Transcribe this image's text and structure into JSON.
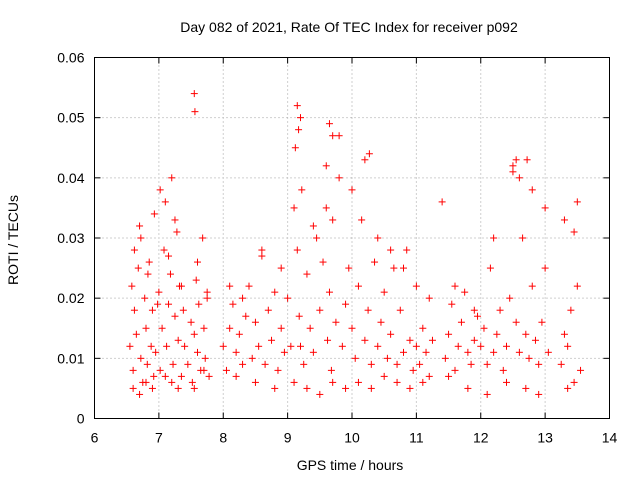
{
  "chart_data": {
    "type": "scatter",
    "title": "Day 082 of 2021, Rate Of TEC Index for receiver p092",
    "xlabel": "GPS time / hours",
    "ylabel": "ROTI / TECUs",
    "xlim": [
      6,
      14
    ],
    "ylim": [
      0,
      0.06
    ],
    "xticks": [
      6,
      7,
      8,
      9,
      10,
      11,
      12,
      13,
      14
    ],
    "yticks": [
      0,
      0.01,
      0.02,
      0.03,
      0.04,
      0.05,
      0.06
    ],
    "xtick_labels": [
      "6",
      "7",
      "8",
      "9",
      "10",
      "11",
      "12",
      "13",
      "14"
    ],
    "ytick_labels": [
      "0",
      "0.01",
      "0.02",
      "0.03",
      "0.04",
      "0.05",
      "0.06"
    ],
    "grid": true,
    "marker": "+",
    "color": "#ff0000",
    "series": [
      {
        "name": "ROTI",
        "x": [
          6.55,
          6.58,
          6.6,
          6.62,
          6.65,
          6.68,
          6.7,
          6.72,
          6.75,
          6.78,
          6.8,
          6.82,
          6.85,
          6.88,
          6.9,
          6.92,
          6.95,
          6.98,
          7.0,
          7.02,
          7.05,
          7.08,
          7.1,
          7.12,
          7.15,
          7.18,
          7.2,
          7.22,
          7.25,
          7.28,
          7.3,
          7.32,
          7.35,
          7.38,
          7.4,
          7.45,
          7.5,
          7.52,
          7.55,
          7.58,
          7.6,
          7.62,
          7.65,
          7.68,
          7.7,
          7.72,
          7.75,
          7.78,
          8.0,
          8.05,
          8.1,
          8.15,
          8.2,
          8.25,
          8.3,
          8.35,
          8.4,
          8.45,
          8.5,
          8.55,
          8.6,
          8.65,
          8.7,
          8.75,
          8.8,
          8.85,
          8.9,
          8.95,
          9.0,
          9.05,
          9.1,
          9.12,
          9.15,
          9.18,
          9.2,
          9.22,
          9.25,
          9.3,
          9.35,
          9.4,
          9.45,
          9.5,
          9.55,
          9.6,
          9.62,
          9.65,
          9.68,
          9.7,
          9.75,
          9.8,
          9.85,
          9.9,
          9.95,
          10.0,
          10.05,
          10.1,
          10.15,
          10.2,
          10.25,
          10.3,
          10.35,
          10.4,
          10.45,
          10.5,
          10.55,
          10.6,
          10.65,
          10.7,
          10.75,
          10.8,
          10.85,
          10.9,
          10.95,
          11.0,
          11.05,
          11.1,
          11.15,
          11.2,
          11.25,
          11.4,
          11.45,
          11.5,
          11.55,
          11.6,
          11.65,
          11.7,
          11.75,
          11.8,
          11.85,
          11.9,
          11.95,
          12.0,
          12.05,
          12.1,
          12.15,
          12.2,
          12.25,
          12.3,
          12.35,
          12.4,
          12.45,
          12.5,
          12.55,
          12.6,
          12.65,
          12.7,
          12.75,
          12.8,
          12.85,
          12.9,
          12.95,
          13.0,
          13.05,
          13.25,
          13.3,
          13.35,
          13.4,
          13.45,
          13.5,
          13.55,
          6.6,
          6.7,
          6.8,
          6.9,
          7.1,
          7.2,
          7.3,
          7.55,
          7.7,
          8.2,
          8.5,
          8.8,
          9.1,
          9.3,
          9.5,
          9.7,
          9.9,
          10.1,
          10.3,
          10.5,
          10.7,
          10.9,
          11.1,
          11.5,
          11.8,
          12.1,
          12.4,
          12.7,
          12.9,
          13.35,
          13.45,
          6.62,
          6.72,
          6.83,
          6.93,
          7.02,
          7.15,
          7.25,
          7.35,
          7.6,
          7.75,
          8.1,
          8.3,
          8.6,
          8.9,
          9.2,
          9.4,
          9.6,
          9.8,
          10.0,
          10.2,
          10.4,
          10.6,
          10.8,
          11.0,
          11.2,
          11.6,
          11.9,
          12.2,
          12.5,
          12.8,
          13.0,
          13.3,
          13.5,
          7.55,
          7.56,
          9.15,
          9.17,
          9.65,
          9.7,
          10.27,
          12.55,
          12.6,
          12.72
        ],
        "y": [
          0.012,
          0.022,
          0.008,
          0.018,
          0.014,
          0.025,
          0.032,
          0.01,
          0.006,
          0.02,
          0.015,
          0.009,
          0.026,
          0.012,
          0.018,
          0.007,
          0.011,
          0.019,
          0.021,
          0.008,
          0.015,
          0.028,
          0.036,
          0.012,
          0.019,
          0.024,
          0.04,
          0.009,
          0.017,
          0.031,
          0.013,
          0.022,
          0.007,
          0.018,
          0.012,
          0.009,
          0.016,
          0.006,
          0.014,
          0.023,
          0.011,
          0.019,
          0.008,
          0.03,
          0.015,
          0.01,
          0.021,
          0.007,
          0.012,
          0.008,
          0.015,
          0.019,
          0.011,
          0.014,
          0.009,
          0.017,
          0.022,
          0.01,
          0.016,
          0.012,
          0.027,
          0.009,
          0.018,
          0.013,
          0.021,
          0.008,
          0.015,
          0.011,
          0.02,
          0.012,
          0.035,
          0.045,
          0.028,
          0.017,
          0.012,
          0.038,
          0.009,
          0.024,
          0.015,
          0.011,
          0.03,
          0.018,
          0.026,
          0.042,
          0.013,
          0.021,
          0.008,
          0.033,
          0.016,
          0.04,
          0.012,
          0.019,
          0.025,
          0.015,
          0.01,
          0.022,
          0.033,
          0.013,
          0.018,
          0.009,
          0.026,
          0.012,
          0.016,
          0.021,
          0.01,
          0.014,
          0.025,
          0.009,
          0.018,
          0.011,
          0.028,
          0.013,
          0.008,
          0.012,
          0.009,
          0.015,
          0.011,
          0.007,
          0.013,
          0.036,
          0.01,
          0.014,
          0.019,
          0.008,
          0.012,
          0.016,
          0.021,
          0.011,
          0.009,
          0.013,
          0.017,
          0.012,
          0.015,
          0.009,
          0.025,
          0.011,
          0.014,
          0.018,
          0.008,
          0.012,
          0.02,
          0.042,
          0.016,
          0.011,
          0.03,
          0.014,
          0.01,
          0.022,
          0.013,
          0.009,
          0.016,
          0.025,
          0.011,
          0.009,
          0.014,
          0.012,
          0.018,
          0.031,
          0.022,
          0.008,
          0.005,
          0.004,
          0.006,
          0.005,
          0.007,
          0.006,
          0.005,
          0.005,
          0.008,
          0.007,
          0.006,
          0.005,
          0.006,
          0.005,
          0.004,
          0.006,
          0.005,
          0.006,
          0.005,
          0.007,
          0.006,
          0.005,
          0.006,
          0.007,
          0.005,
          0.004,
          0.006,
          0.005,
          0.004,
          0.005,
          0.006,
          0.028,
          0.03,
          0.024,
          0.034,
          0.038,
          0.027,
          0.033,
          0.022,
          0.026,
          0.02,
          0.022,
          0.02,
          0.028,
          0.025,
          0.05,
          0.032,
          0.035,
          0.047,
          0.038,
          0.043,
          0.03,
          0.028,
          0.025,
          0.022,
          0.02,
          0.022,
          0.018,
          0.03,
          0.041,
          0.038,
          0.035,
          0.033,
          0.036,
          0.054,
          0.051,
          0.052,
          0.048,
          0.049,
          0.047,
          0.044,
          0.043,
          0.04,
          0.043
        ]
      }
    ]
  }
}
